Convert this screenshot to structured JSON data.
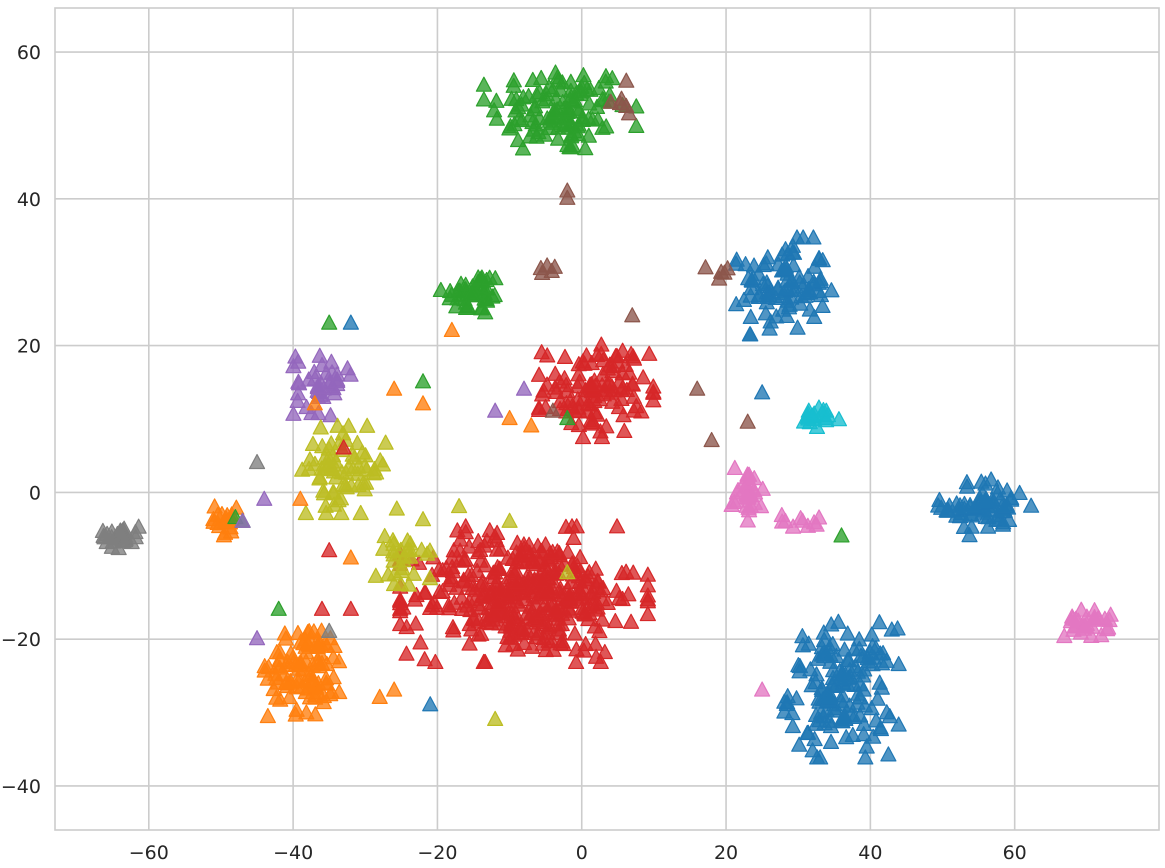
{
  "chart_data": {
    "type": "scatter",
    "title": "",
    "xlabel": "",
    "ylabel": "",
    "xlim": [
      -73,
      80
    ],
    "ylim": [
      -46,
      66
    ],
    "grid": true,
    "marker": "triangle-up",
    "x_ticks": [
      -60,
      -40,
      -20,
      0,
      20,
      40,
      60
    ],
    "y_ticks": [
      -40,
      -20,
      0,
      20,
      40,
      60
    ],
    "x_tick_labels": [
      "−60",
      "−40",
      "−20",
      "0",
      "20",
      "40",
      "60"
    ],
    "y_tick_labels": [
      "−40",
      "−20",
      "0",
      "20",
      "40",
      "60"
    ],
    "clusters": [
      {
        "color": "#2ca02c",
        "center": [
          -3,
          52
        ],
        "spread": [
          8,
          5
        ],
        "n": 120
      },
      {
        "color": "#2ca02c",
        "center": [
          -15,
          27
        ],
        "spread": [
          3.5,
          2.5
        ],
        "n": 45
      },
      {
        "color": "#1f77b4",
        "center": [
          28,
          28
        ],
        "spread": [
          5,
          5
        ],
        "n": 95
      },
      {
        "color": "#1f77b4",
        "center": [
          56,
          -2
        ],
        "spread": [
          5,
          3
        ],
        "n": 70
      },
      {
        "color": "#1f77b4",
        "center": [
          36,
          -27
        ],
        "spread": [
          6,
          7
        ],
        "n": 150
      },
      {
        "color": "#17becf",
        "center": [
          33,
          10
        ],
        "spread": [
          2.5,
          1.2
        ],
        "n": 20
      },
      {
        "color": "#e377c2",
        "center": [
          23,
          0
        ],
        "spread": [
          1.8,
          3
        ],
        "n": 30
      },
      {
        "color": "#e377c2",
        "center": [
          31,
          -4
        ],
        "spread": [
          3,
          0.8
        ],
        "n": 10
      },
      {
        "color": "#e377c2",
        "center": [
          70,
          -18
        ],
        "spread": [
          2.5,
          1.5
        ],
        "n": 30
      },
      {
        "color": "#d62728",
        "center": [
          2,
          14
        ],
        "spread": [
          6,
          5
        ],
        "n": 110
      },
      {
        "color": "#d62728",
        "center": [
          -8,
          -14
        ],
        "spread": [
          13,
          7
        ],
        "n": 400
      },
      {
        "color": "#ff7f0e",
        "center": [
          -38,
          -24
        ],
        "spread": [
          4.5,
          5
        ],
        "n": 100
      },
      {
        "color": "#ff7f0e",
        "center": [
          -50,
          -4
        ],
        "spread": [
          2.5,
          1.5
        ],
        "n": 20
      },
      {
        "color": "#7f7f7f",
        "center": [
          -64,
          -6
        ],
        "spread": [
          2.2,
          1.3
        ],
        "n": 30
      },
      {
        "color": "#9467bd",
        "center": [
          -36,
          15
        ],
        "spread": [
          3,
          3.5
        ],
        "n": 40
      },
      {
        "color": "#bcbd22",
        "center": [
          -33,
          3
        ],
        "spread": [
          5,
          4.5
        ],
        "n": 70
      },
      {
        "color": "#bcbd22",
        "center": [
          -25,
          -8
        ],
        "spread": [
          3,
          5
        ],
        "n": 30
      },
      {
        "color": "#8c564b",
        "center": [
          -5,
          30
        ],
        "spread": [
          2,
          0.6
        ],
        "n": 5
      },
      {
        "color": "#8c564b",
        "center": [
          6,
          52
        ],
        "spread": [
          1.5,
          3
        ],
        "n": 6
      },
      {
        "color": "#8c564b",
        "center": [
          19,
          30
        ],
        "spread": [
          2,
          0.8
        ],
        "n": 5
      }
    ],
    "outliers": [
      [
        -2,
        40,
        "#8c564b"
      ],
      [
        -2,
        41,
        "#8c564b"
      ],
      [
        25,
        13.5,
        "#1f77b4"
      ],
      [
        23,
        9.5,
        "#8c564b"
      ],
      [
        -35,
        23,
        "#2ca02c"
      ],
      [
        -32,
        23,
        "#1f77b4"
      ],
      [
        -22,
        15,
        "#2ca02c"
      ],
      [
        -47,
        -4,
        "#2ca02c"
      ],
      [
        -48,
        -3.5,
        "#2ca02c"
      ],
      [
        -42,
        -16,
        "#2ca02c"
      ],
      [
        36,
        -6,
        "#2ca02c"
      ],
      [
        -21,
        -29,
        "#1f77b4"
      ],
      [
        -35,
        -19,
        "#7f7f7f"
      ],
      [
        -45,
        4,
        "#7f7f7f"
      ],
      [
        -28,
        -28,
        "#ff7f0e"
      ],
      [
        -26,
        -27,
        "#ff7f0e"
      ],
      [
        25,
        -27,
        "#e377c2"
      ],
      [
        18,
        7,
        "#8c564b"
      ],
      [
        16,
        14,
        "#8c564b"
      ],
      [
        -26,
        14,
        "#ff7f0e"
      ],
      [
        -37,
        12,
        "#ff7f0e"
      ],
      [
        -18,
        22,
        "#ff7f0e"
      ],
      [
        -10,
        10,
        "#ff7f0e"
      ],
      [
        -7,
        9,
        "#ff7f0e"
      ],
      [
        -8,
        14,
        "#9467bd"
      ],
      [
        -12,
        11,
        "#9467bd"
      ],
      [
        -2,
        10,
        "#2ca02c"
      ],
      [
        -44,
        -1,
        "#9467bd"
      ],
      [
        -45,
        -20,
        "#9467bd"
      ],
      [
        -22,
        12,
        "#ff7f0e"
      ],
      [
        -33,
        6,
        "#d62728"
      ],
      [
        -39,
        -1,
        "#ff7f0e"
      ],
      [
        -23,
        -18,
        "#d62728"
      ],
      [
        -32,
        -16,
        "#d62728"
      ],
      [
        -35,
        -8,
        "#d62728"
      ],
      [
        -36,
        -16,
        "#d62728"
      ],
      [
        -10,
        -4,
        "#bcbd22"
      ],
      [
        -17,
        -2,
        "#bcbd22"
      ],
      [
        -2,
        -11,
        "#bcbd22"
      ],
      [
        -12,
        -31,
        "#bcbd22"
      ],
      [
        -32,
        -9,
        "#ff7f0e"
      ],
      [
        -47,
        -4,
        "#9467bd"
      ],
      [
        7,
        24,
        "#8c564b"
      ],
      [
        -4,
        11,
        "#8c564b"
      ]
    ],
    "seed": 12345
  }
}
